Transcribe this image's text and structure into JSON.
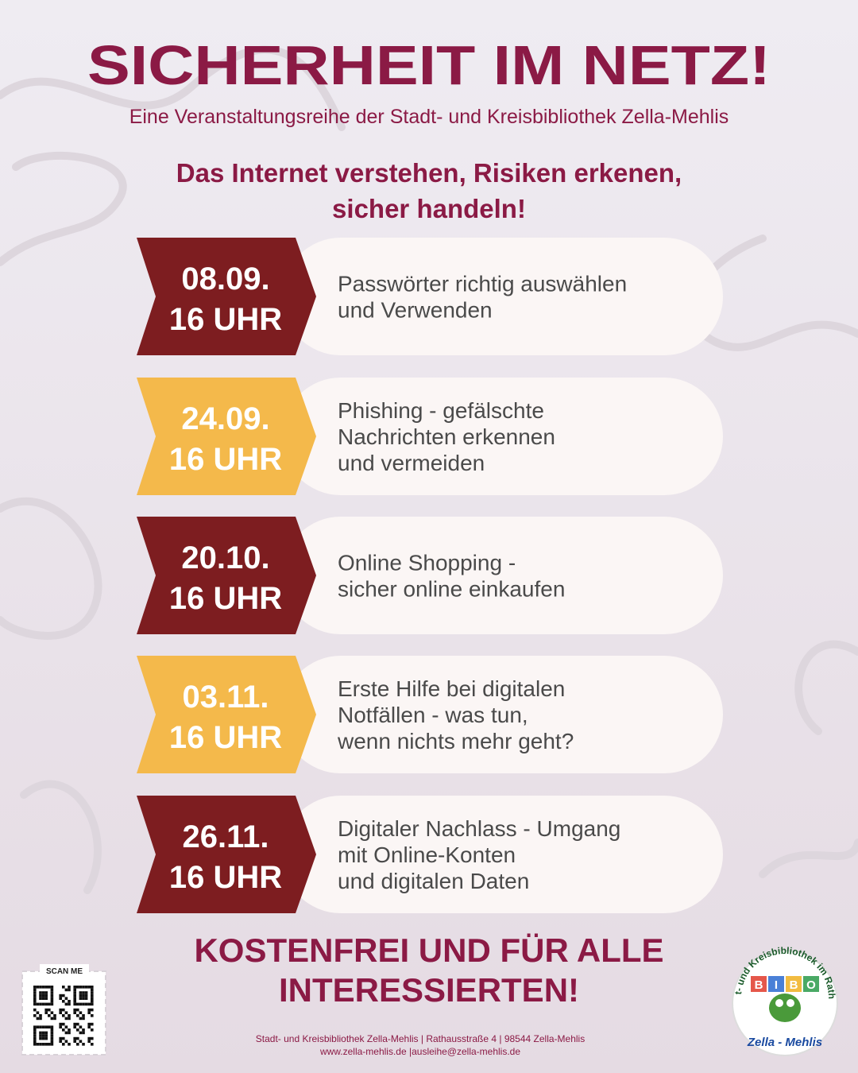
{
  "header": {
    "title": "SICHERHEIT IM NETZ!",
    "subtitle": "Eine Veranstaltungsreihe der Stadt- und Kreisbibliothek Zella-Mehlis"
  },
  "tagline": [
    "Das Internet verstehen, Risiken erkenen,",
    "sicher handeln!"
  ],
  "events": [
    {
      "date": "08.09.",
      "time": "16 UHR",
      "color": "#7d1d20",
      "lines": [
        "Passwörter richtig auswählen",
        "und Verwenden"
      ]
    },
    {
      "date": "24.09.",
      "time": "16 UHR",
      "color": "#f4b94b",
      "lines": [
        "Phishing - gefälschte",
        "Nachrichten erkennen",
        "und vermeiden"
      ]
    },
    {
      "date": "20.10.",
      "time": "16 UHR",
      "color": "#7d1d20",
      "lines": [
        "Online Shopping -",
        "sicher online einkaufen"
      ]
    },
    {
      "date": "03.11.",
      "time": "16 UHR",
      "color": "#f4b94b",
      "lines": [
        "Erste Hilfe bei digitalen",
        "Notfällen - was tun,",
        "wenn nichts mehr geht?"
      ]
    },
    {
      "date": "26.11.",
      "time": "16 UHR",
      "color": "#7d1d20",
      "lines": [
        "Digitaler Nachlass - Umgang",
        "mit Online-Konten",
        "und digitalen Daten"
      ]
    }
  ],
  "footer": {
    "heading": [
      "KOSTENFREI UND FÜR ALLE",
      "INTERESSIERTEN!"
    ],
    "qr_label": "SCAN ME",
    "address": [
      "Stadt- und Kreisbibliothek Zella-Mehlis | Rathausstraße 4 | 98544 Zella-Mehlis",
      "www.zella-mehlis.de |ausleihe@zella-mehlis.de"
    ]
  },
  "logo": {
    "ring_text": "Stadt- und Kreisbibliothek im Rathaus",
    "letters": [
      "B",
      "I",
      "B",
      "O"
    ],
    "place": "Zella - Mehlis"
  }
}
